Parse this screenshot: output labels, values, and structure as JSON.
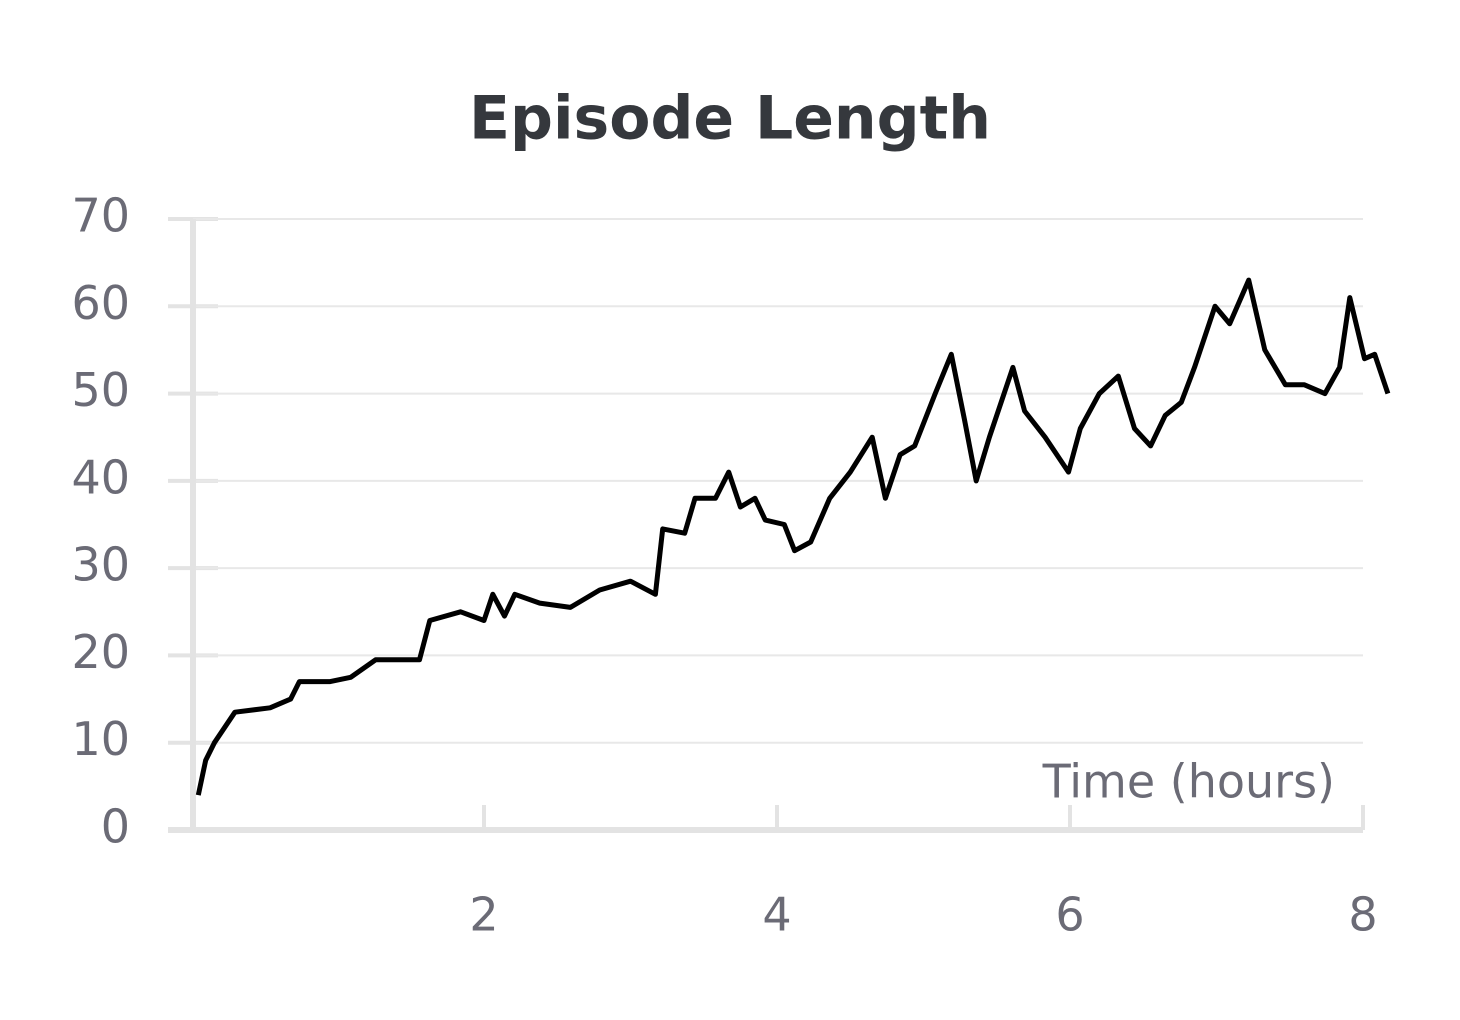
{
  "chart_data": {
    "type": "line",
    "title": "Episode Length",
    "x_label": "Time (hours)",
    "x": [
      0.05,
      0.1,
      0.16,
      0.3,
      0.54,
      0.68,
      0.74,
      0.95,
      1.09,
      1.26,
      1.43,
      1.56,
      1.63,
      1.84,
      2.0,
      2.06,
      2.14,
      2.21,
      2.38,
      2.59,
      2.79,
      3.0,
      3.17,
      3.22,
      3.37,
      3.44,
      3.58,
      3.67,
      3.75,
      3.85,
      3.92,
      4.05,
      4.12,
      4.23,
      4.36,
      4.5,
      4.65,
      4.74,
      4.84,
      4.94,
      5.08,
      5.19,
      5.28,
      5.36,
      5.45,
      5.61,
      5.69,
      5.83,
      5.99,
      6.07,
      6.2,
      6.33,
      6.44,
      6.55,
      6.65,
      6.76,
      6.85,
      6.99,
      7.09,
      7.22,
      7.33,
      7.47,
      7.6,
      7.74,
      7.84,
      7.91,
      8.01,
      8.08,
      8.17
    ],
    "values": [
      4,
      8,
      10,
      13.5,
      14,
      15,
      17,
      17,
      17.5,
      19.5,
      19.5,
      19.5,
      24,
      25,
      24,
      27,
      24.5,
      27,
      26,
      25.5,
      27.5,
      28.5,
      27,
      34.5,
      34,
      38,
      38,
      41,
      37,
      38,
      35.5,
      35,
      32,
      33,
      38,
      41,
      45,
      38,
      43,
      44,
      50,
      54.5,
      47,
      40,
      45,
      53,
      48,
      45,
      41,
      46,
      50,
      52,
      46,
      44,
      47.5,
      49,
      53,
      60,
      58,
      63,
      55,
      51,
      51,
      50,
      53,
      61,
      54,
      54.5,
      50
    ],
    "color": "#000000",
    "xlim": [
      0,
      8
    ],
    "ylim": [
      0,
      70
    ],
    "xticks": [
      2,
      4,
      6,
      8
    ],
    "yticks": [
      0,
      10,
      20,
      30,
      40,
      50,
      60,
      70
    ],
    "grid": true
  }
}
